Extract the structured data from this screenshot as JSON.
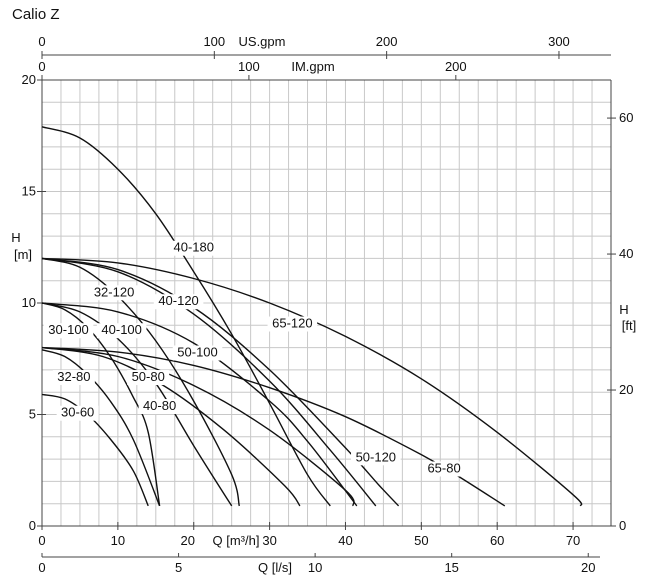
{
  "title": "Calio Z",
  "chart_data": {
    "type": "line",
    "title": "Calio Z",
    "grid": true,
    "axes": {
      "x_main": {
        "label": "Q [m³/h]",
        "range": [
          0,
          75
        ],
        "ticks": [
          0,
          10,
          20,
          30,
          40,
          50,
          60,
          70
        ]
      },
      "x_ls": {
        "label": "Q [l/s]",
        "range": [
          0,
          20.833
        ],
        "ticks": [
          0,
          5,
          10,
          15,
          20
        ]
      },
      "x_usgpm": {
        "label": "US.gpm",
        "range": [
          0,
          330.2
        ],
        "ticks": [
          0,
          100,
          200,
          300
        ]
      },
      "x_imgpm": {
        "label": "IM.gpm",
        "range": [
          0,
          275
        ],
        "ticks": [
          0,
          100,
          200
        ]
      },
      "y_left": {
        "label": [
          "H",
          "[m]"
        ],
        "range": [
          0,
          20
        ],
        "ticks": [
          0,
          5,
          10,
          15,
          20
        ]
      },
      "y_right": {
        "label": [
          "H",
          "[ft]"
        ],
        "range": [
          0,
          65.6
        ],
        "ticks": [
          0,
          20,
          40,
          60
        ]
      }
    },
    "series": [
      {
        "name": "30-60",
        "points": [
          [
            0,
            5.9
          ],
          [
            3,
            5.7
          ],
          [
            6,
            5.0
          ],
          [
            9,
            3.9
          ],
          [
            12,
            2.5
          ],
          [
            14,
            0.9
          ]
        ]
      },
      {
        "name": "32-80",
        "points": [
          [
            0,
            7.9
          ],
          [
            3,
            7.6
          ],
          [
            6,
            6.8
          ],
          [
            9,
            5.6
          ],
          [
            12,
            3.9
          ],
          [
            15.5,
            0.9
          ]
        ]
      },
      {
        "name": "30-100",
        "points": [
          [
            0,
            10.0
          ],
          [
            3,
            9.7
          ],
          [
            6,
            8.9
          ],
          [
            9,
            7.6
          ],
          [
            12,
            5.8
          ],
          [
            14,
            4.2
          ],
          [
            15.5,
            0.9
          ]
        ]
      },
      {
        "name": "40-100",
        "points": [
          [
            0,
            10.0
          ],
          [
            5,
            9.6
          ],
          [
            10,
            8.4
          ],
          [
            15,
            6.4
          ],
          [
            20,
            3.6
          ],
          [
            25,
            0.9
          ]
        ]
      },
      {
        "name": "32-120",
        "points": [
          [
            0,
            12.0
          ],
          [
            5,
            11.6
          ],
          [
            10,
            10.3
          ],
          [
            15,
            8.3
          ],
          [
            20,
            5.6
          ],
          [
            25,
            2.3
          ],
          [
            26,
            0.9
          ]
        ]
      },
      {
        "name": "40-80",
        "points": [
          [
            0,
            8.0
          ],
          [
            8,
            7.6
          ],
          [
            16,
            6.3
          ],
          [
            24,
            4.3
          ],
          [
            32,
            1.8
          ],
          [
            34,
            0.9
          ]
        ]
      },
      {
        "name": "50-80",
        "points": [
          [
            0,
            8.0
          ],
          [
            10,
            7.6
          ],
          [
            20,
            6.3
          ],
          [
            30,
            4.3
          ],
          [
            40,
            1.6
          ],
          [
            41,
            0.9
          ]
        ]
      },
      {
        "name": "50-100",
        "points": [
          [
            0,
            10.0
          ],
          [
            10,
            9.6
          ],
          [
            20,
            8.2
          ],
          [
            30,
            5.6
          ],
          [
            35,
            3.8
          ],
          [
            41.5,
            0.9
          ]
        ]
      },
      {
        "name": "40-180",
        "points": [
          [
            0,
            17.9
          ],
          [
            5,
            17.4
          ],
          [
            10,
            16.0
          ],
          [
            15,
            14.0
          ],
          [
            20,
            11.4
          ],
          [
            25,
            8.6
          ],
          [
            30,
            5.5
          ],
          [
            35,
            2.3
          ],
          [
            38,
            0.9
          ]
        ]
      },
      {
        "name": "40-120",
        "points": [
          [
            0,
            12.0
          ],
          [
            10,
            11.4
          ],
          [
            20,
            9.5
          ],
          [
            30,
            6.5
          ],
          [
            38,
            3.4
          ],
          [
            44,
            0.9
          ]
        ]
      },
      {
        "name": "50-120",
        "points": [
          [
            0,
            12.0
          ],
          [
            10,
            11.5
          ],
          [
            20,
            9.8
          ],
          [
            30,
            7.0
          ],
          [
            40,
            3.5
          ],
          [
            44.5,
            1.8
          ],
          [
            47,
            0.9
          ]
        ]
      },
      {
        "name": "65-80",
        "points": [
          [
            0,
            8.0
          ],
          [
            10,
            7.8
          ],
          [
            20,
            7.2
          ],
          [
            30,
            6.2
          ],
          [
            40,
            4.9
          ],
          [
            50,
            3.2
          ],
          [
            55,
            2.2
          ],
          [
            61,
            0.9
          ]
        ]
      },
      {
        "name": "65-120",
        "points": [
          [
            0,
            12.0
          ],
          [
            10,
            11.8
          ],
          [
            20,
            11.1
          ],
          [
            30,
            10.0
          ],
          [
            40,
            8.5
          ],
          [
            50,
            6.6
          ],
          [
            60,
            4.2
          ],
          [
            70,
            1.4
          ],
          [
            71,
            0.9
          ]
        ]
      }
    ],
    "curve_labels": [
      {
        "text": "40-180",
        "q": 20,
        "h": 12.3
      },
      {
        "text": "32-120",
        "q": 9.5,
        "h": 10.3
      },
      {
        "text": "40-120",
        "q": 18,
        "h": 9.9
      },
      {
        "text": "65-120",
        "q": 33,
        "h": 8.9
      },
      {
        "text": "30-100",
        "q": 3.5,
        "h": 8.6
      },
      {
        "text": "40-100",
        "q": 10.5,
        "h": 8.6
      },
      {
        "text": "50-100",
        "q": 20.5,
        "h": 7.6
      },
      {
        "text": "32-80",
        "q": 4.2,
        "h": 6.5
      },
      {
        "text": "50-80",
        "q": 14,
        "h": 6.5
      },
      {
        "text": "30-60",
        "q": 4.7,
        "h": 4.9
      },
      {
        "text": "40-80",
        "q": 15.5,
        "h": 5.2
      },
      {
        "text": "50-120",
        "q": 44,
        "h": 2.9
      },
      {
        "text": "65-80",
        "q": 53,
        "h": 2.4
      }
    ]
  }
}
